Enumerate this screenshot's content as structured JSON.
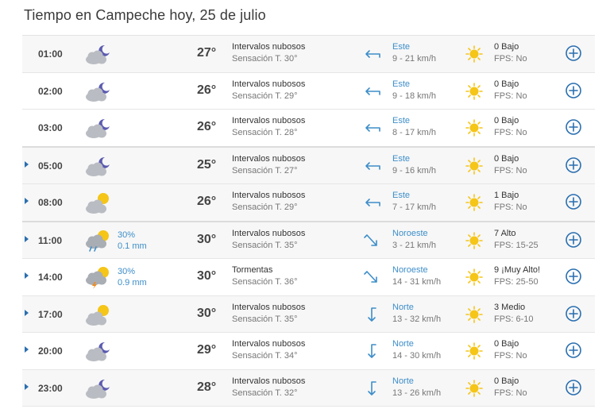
{
  "title": "Tiempo en Campeche hoy, 25 de julio",
  "colors": {
    "accent": "#2a6fb0",
    "wind": "#3d8ec9",
    "sun": "#f5c518"
  },
  "rows": [
    {
      "hour": "01:00",
      "icon": "night-cloud",
      "precip": "",
      "mm": "",
      "temp": "27°",
      "cond": "Intervalos nubosos",
      "feels": "Sensación T. 30°",
      "dir": "Este",
      "arrow": "arrow-left",
      "speed": "9 - 21 km/h",
      "uv": "0 Bajo",
      "fps": "FPS: No",
      "expand": false
    },
    {
      "hour": "02:00",
      "icon": "night-cloud",
      "precip": "",
      "mm": "",
      "temp": "26°",
      "cond": "Intervalos nubosos",
      "feels": "Sensación T. 29°",
      "dir": "Este",
      "arrow": "arrow-left",
      "speed": "9 - 18 km/h",
      "uv": "0 Bajo",
      "fps": "FPS: No",
      "expand": false
    },
    {
      "hour": "03:00",
      "icon": "night-cloud",
      "precip": "",
      "mm": "",
      "temp": "26°",
      "cond": "Intervalos nubosos",
      "feels": "Sensación T. 28°",
      "dir": "Este",
      "arrow": "arrow-left",
      "speed": "8 - 17 km/h",
      "uv": "0 Bajo",
      "fps": "FPS: No",
      "expand": false
    },
    {
      "hour": "05:00",
      "icon": "night-cloud",
      "precip": "",
      "mm": "",
      "temp": "25°",
      "cond": "Intervalos nubosos",
      "feels": "Sensación T. 27°",
      "dir": "Este",
      "arrow": "arrow-left",
      "speed": "9 - 16 km/h",
      "uv": "0 Bajo",
      "fps": "FPS: No",
      "expand": true
    },
    {
      "hour": "08:00",
      "icon": "sun-cloud",
      "precip": "",
      "mm": "",
      "temp": "26°",
      "cond": "Intervalos nubosos",
      "feels": "Sensación T. 29°",
      "dir": "Este",
      "arrow": "arrow-left",
      "speed": "7 - 17 km/h",
      "uv": "1 Bajo",
      "fps": "FPS: No",
      "expand": true
    },
    {
      "hour": "11:00",
      "icon": "sun-rain",
      "precip": "30%",
      "mm": "0.1 mm",
      "temp": "30°",
      "cond": "Intervalos nubosos",
      "feels": "Sensación T. 35°",
      "dir": "Noroeste",
      "arrow": "arrow-southeast",
      "speed": "3 - 21 km/h",
      "uv": "7 Alto",
      "fps": "FPS: 15-25",
      "expand": true
    },
    {
      "hour": "14:00",
      "icon": "sun-storm",
      "precip": "30%",
      "mm": "0.9 mm",
      "temp": "30°",
      "cond": "Tormentas",
      "feels": "Sensación T. 36°",
      "dir": "Noroeste",
      "arrow": "arrow-southeast",
      "speed": "14 - 31 km/h",
      "uv": "9 ¡Muy Alto!",
      "fps": "FPS: 25-50",
      "expand": true
    },
    {
      "hour": "17:00",
      "icon": "sun-cloud",
      "precip": "",
      "mm": "",
      "temp": "30°",
      "cond": "Intervalos nubosos",
      "feels": "Sensación T. 35°",
      "dir": "Norte",
      "arrow": "arrow-down",
      "speed": "13 - 32 km/h",
      "uv": "3 Medio",
      "fps": "FPS: 6-10",
      "expand": true
    },
    {
      "hour": "20:00",
      "icon": "night-cloud",
      "precip": "",
      "mm": "",
      "temp": "29°",
      "cond": "Intervalos nubosos",
      "feels": "Sensación T. 34°",
      "dir": "Norte",
      "arrow": "arrow-down",
      "speed": "14 - 30 km/h",
      "uv": "0 Bajo",
      "fps": "FPS: No",
      "expand": true
    },
    {
      "hour": "23:00",
      "icon": "night-cloud",
      "precip": "",
      "mm": "",
      "temp": "28°",
      "cond": "Intervalos nubosos",
      "feels": "Sensación T. 32°",
      "dir": "Norte",
      "arrow": "arrow-down",
      "speed": "13 - 26 km/h",
      "uv": "0 Bajo",
      "fps": "FPS: No",
      "expand": true
    }
  ]
}
